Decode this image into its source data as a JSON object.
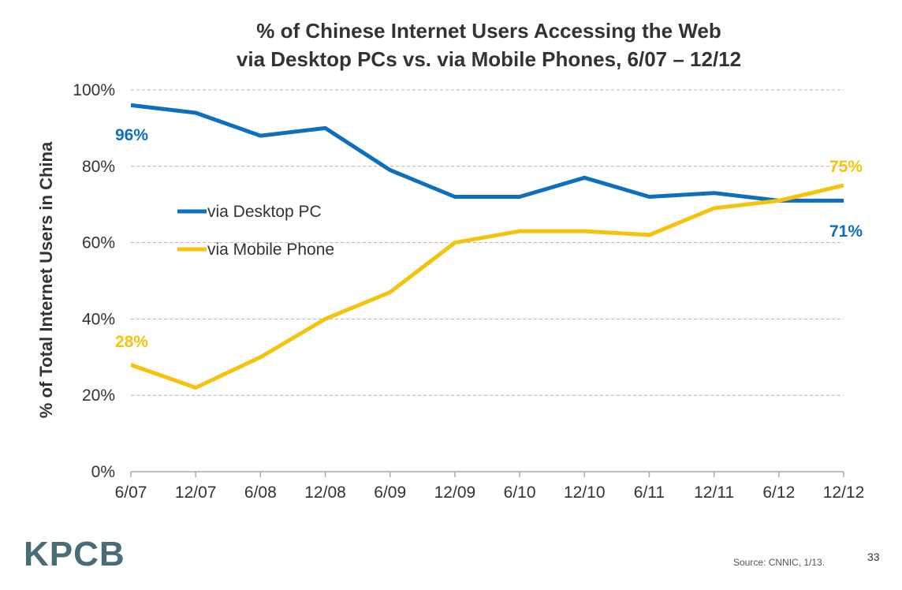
{
  "title_line1": "% of Chinese Internet Users Accessing the Web",
  "title_line2": "via Desktop PCs vs. via Mobile Phones, 6/07 – 12/12",
  "logo_text": "KPCB",
  "source": "Source: CNNIC, 1/13.",
  "page_number": "33",
  "colors": {
    "desktop": "#0e6fbd",
    "mobile": "#f5c30b",
    "grid": "#b3b3b3",
    "axis": "#aaaaaa",
    "text": "#333333"
  },
  "chart_data": {
    "type": "line",
    "title": "% of Chinese Internet Users Accessing the Web via Desktop PCs vs. via Mobile Phones, 6/07 – 12/12",
    "xlabel": "",
    "ylabel": "% of Total Internet Users in China",
    "categories": [
      "6/07",
      "12/07",
      "6/08",
      "12/08",
      "6/09",
      "12/09",
      "6/10",
      "12/10",
      "6/11",
      "12/11",
      "6/12",
      "12/12"
    ],
    "yticks": [
      "0%",
      "20%",
      "40%",
      "60%",
      "80%",
      "100%"
    ],
    "ylim": [
      0,
      100
    ],
    "grid": "horizontal dashed",
    "legend_position": "middle-left",
    "series": [
      {
        "name": "via Desktop PC",
        "color": "#0e6fbd",
        "values": [
          96,
          94,
          88,
          90,
          79,
          72,
          72,
          77,
          72,
          73,
          71,
          71
        ],
        "start_label": "96%",
        "end_label": "71%"
      },
      {
        "name": "via Mobile Phone",
        "color": "#f5c30b",
        "values": [
          28,
          22,
          30,
          40,
          47,
          60,
          63,
          63,
          62,
          69,
          71,
          75
        ],
        "start_label": "28%",
        "end_label": "75%"
      }
    ]
  }
}
